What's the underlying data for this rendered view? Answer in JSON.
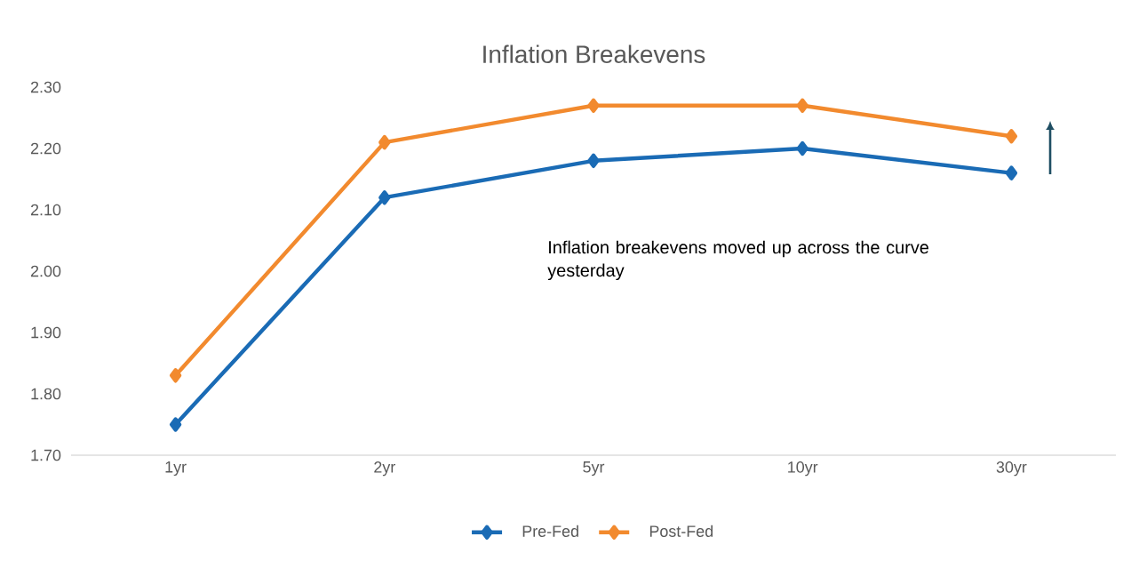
{
  "chart_data": {
    "type": "line",
    "title": "Inflation Breakevens",
    "categories": [
      "1yr",
      "2yr",
      "5yr",
      "10yr",
      "30yr"
    ],
    "series": [
      {
        "name": "Pre-Fed",
        "color": "#1a6bb5",
        "values": [
          1.75,
          2.12,
          2.18,
          2.2,
          2.16
        ]
      },
      {
        "name": "Post-Fed",
        "color": "#f28a2e",
        "values": [
          1.83,
          2.21,
          2.27,
          2.27,
          2.22
        ]
      }
    ],
    "ylim": [
      1.7,
      2.3
    ],
    "yticks": [
      {
        "value": 1.7,
        "label": "1.70"
      },
      {
        "value": 1.8,
        "label": "1.80"
      },
      {
        "value": 1.9,
        "label": "1.90"
      },
      {
        "value": 2.0,
        "label": "2.00"
      },
      {
        "value": 2.1,
        "label": "2.10"
      },
      {
        "value": 2.2,
        "label": "2.20"
      },
      {
        "value": 2.3,
        "label": "2.30"
      }
    ],
    "annotations": [
      "Inflation breakevens moved up across the curve yesterday"
    ],
    "grid": false,
    "legend": "bottom",
    "marker": "diamond",
    "line_style": "solid"
  }
}
